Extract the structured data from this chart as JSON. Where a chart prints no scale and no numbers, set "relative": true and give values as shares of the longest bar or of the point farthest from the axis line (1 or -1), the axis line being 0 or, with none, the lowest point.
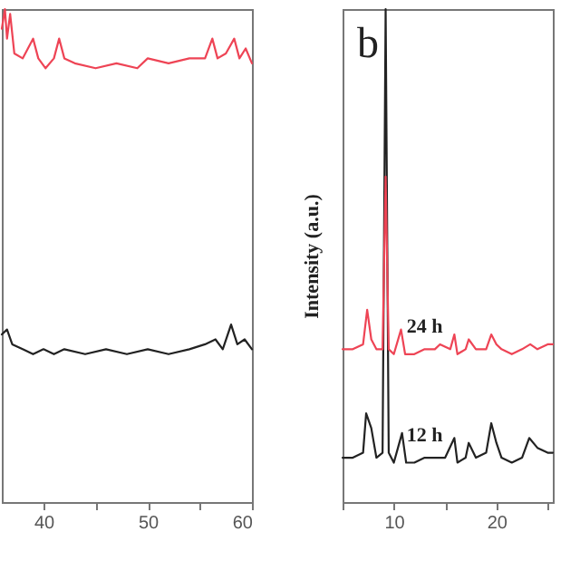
{
  "chart_data": [
    {
      "type": "line",
      "relative": true,
      "xlim": [
        36,
        60
      ],
      "xticks": [
        40,
        {
          "value": 45,
          "label": null
        },
        50,
        {
          "value": 55,
          "label": null
        },
        60
      ],
      "legend": false,
      "grid": false,
      "series": [
        {
          "color": "#ee4455",
          "x": [
            36,
            36.3,
            36.5,
            36.8,
            37.2,
            38,
            39,
            39.5,
            40.2,
            41,
            41.5,
            42,
            43,
            45,
            47,
            49,
            50,
            52,
            54,
            55.5,
            56.2,
            56.7,
            57.5,
            58.3,
            58.8,
            59.4,
            60
          ],
          "values": [
            0.96,
            1.0,
            0.94,
            0.99,
            0.91,
            0.9,
            0.94,
            0.9,
            0.88,
            0.9,
            0.94,
            0.9,
            0.89,
            0.88,
            0.89,
            0.88,
            0.9,
            0.89,
            0.9,
            0.9,
            0.94,
            0.9,
            0.91,
            0.94,
            0.9,
            0.92,
            0.89
          ]
        },
        {
          "color": "#222222",
          "x": [
            36,
            36.5,
            37,
            38,
            39,
            40,
            41,
            42,
            44,
            46,
            48,
            50,
            52,
            54,
            55.5,
            56.5,
            57.2,
            58,
            58.6,
            59.3,
            60
          ],
          "values": [
            0.34,
            0.35,
            0.32,
            0.31,
            0.3,
            0.31,
            0.3,
            0.31,
            0.3,
            0.31,
            0.3,
            0.31,
            0.3,
            0.31,
            0.32,
            0.33,
            0.31,
            0.36,
            0.32,
            0.33,
            0.31
          ]
        }
      ]
    },
    {
      "type": "line",
      "relative": true,
      "title": "b",
      "ylabel": "Intensity (a.u.)",
      "xlim": [
        5,
        25.5
      ],
      "xticks": [
        {
          "value": 5,
          "label": null
        },
        10,
        {
          "value": 15,
          "label": null
        },
        20,
        {
          "value": 25,
          "label": null
        }
      ],
      "legend": false,
      "grid": false,
      "series": [
        {
          "name": "24 h",
          "color": "#ee4455",
          "x": [
            5,
            6,
            7,
            7.4,
            7.8,
            8.3,
            8.9,
            9.2,
            9.5,
            10,
            10.7,
            11.1,
            12,
            13,
            14,
            14.5,
            15.5,
            15.9,
            16.2,
            17,
            17.3,
            18,
            19,
            19.5,
            20,
            20.5,
            21.5,
            22.5,
            23.3,
            24,
            25,
            25.5
          ],
          "values": [
            0.31,
            0.31,
            0.32,
            0.39,
            0.33,
            0.31,
            0.31,
            0.66,
            0.31,
            0.3,
            0.35,
            0.3,
            0.3,
            0.31,
            0.31,
            0.32,
            0.31,
            0.34,
            0.3,
            0.31,
            0.33,
            0.31,
            0.31,
            0.34,
            0.32,
            0.31,
            0.3,
            0.31,
            0.32,
            0.31,
            0.32,
            0.32
          ]
        },
        {
          "name": "12 h",
          "color": "#222222",
          "x": [
            5,
            6,
            7,
            7.3,
            7.8,
            8.3,
            8.9,
            9.2,
            9.5,
            10,
            10.8,
            11.2,
            12,
            13,
            14,
            15,
            15.9,
            16.2,
            17,
            17.3,
            18,
            19,
            19.5,
            20,
            20.5,
            21.5,
            22.5,
            23.2,
            24,
            25,
            25.5
          ],
          "values": [
            0.09,
            0.09,
            0.1,
            0.18,
            0.15,
            0.09,
            0.1,
            1.0,
            0.1,
            0.08,
            0.14,
            0.08,
            0.08,
            0.09,
            0.09,
            0.09,
            0.13,
            0.08,
            0.09,
            0.12,
            0.09,
            0.1,
            0.16,
            0.12,
            0.09,
            0.08,
            0.09,
            0.13,
            0.11,
            0.1,
            0.1
          ]
        }
      ]
    }
  ]
}
